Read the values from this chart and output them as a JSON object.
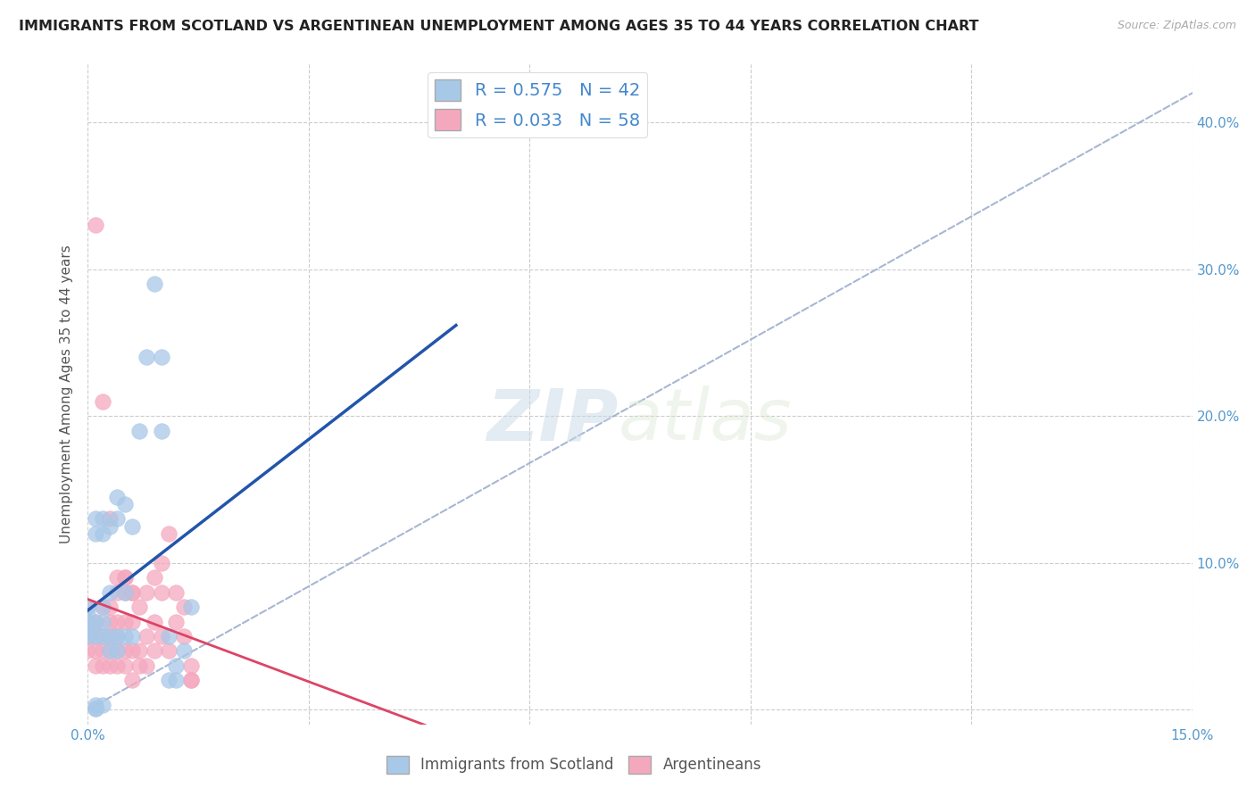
{
  "title": "IMMIGRANTS FROM SCOTLAND VS ARGENTINEAN UNEMPLOYMENT AMONG AGES 35 TO 44 YEARS CORRELATION CHART",
  "source": "Source: ZipAtlas.com",
  "ylabel": "Unemployment Among Ages 35 to 44 years",
  "xlim": [
    0.0,
    0.15
  ],
  "ylim": [
    -0.01,
    0.44
  ],
  "xticks": [
    0.0,
    0.03,
    0.06,
    0.09,
    0.12,
    0.15
  ],
  "yticks": [
    0.0,
    0.1,
    0.2,
    0.3,
    0.4
  ],
  "yticklabels_right": [
    "",
    "10.0%",
    "20.0%",
    "30.0%",
    "40.0%"
  ],
  "scotland_R": 0.575,
  "scotland_N": 42,
  "argentina_R": 0.033,
  "argentina_N": 58,
  "scotland_color": "#a8c8e8",
  "argentina_color": "#f4a8be",
  "scotland_line_color": "#2255aa",
  "argentina_line_color": "#dd4466",
  "ref_line_color": "#99aacc",
  "scotland_x": [
    0.0,
    0.0,
    0.0,
    0.0,
    0.0,
    0.001,
    0.001,
    0.001,
    0.001,
    0.002,
    0.002,
    0.002,
    0.002,
    0.002,
    0.003,
    0.003,
    0.003,
    0.003,
    0.004,
    0.004,
    0.004,
    0.004,
    0.005,
    0.005,
    0.005,
    0.006,
    0.006,
    0.007,
    0.008,
    0.009,
    0.01,
    0.01,
    0.011,
    0.011,
    0.012,
    0.012,
    0.013,
    0.014,
    0.001,
    0.002,
    0.001,
    0.001
  ],
  "scotland_y": [
    0.05,
    0.055,
    0.06,
    0.065,
    0.07,
    0.05,
    0.06,
    0.12,
    0.13,
    0.05,
    0.06,
    0.07,
    0.12,
    0.13,
    0.04,
    0.05,
    0.08,
    0.125,
    0.04,
    0.05,
    0.13,
    0.145,
    0.05,
    0.08,
    0.14,
    0.05,
    0.125,
    0.19,
    0.24,
    0.29,
    0.19,
    0.24,
    0.02,
    0.05,
    0.02,
    0.03,
    0.04,
    0.07,
    0.003,
    0.003,
    0.001,
    0.001
  ],
  "argentina_x": [
    0.0,
    0.0,
    0.0,
    0.0,
    0.001,
    0.001,
    0.001,
    0.001,
    0.002,
    0.002,
    0.002,
    0.002,
    0.003,
    0.003,
    0.003,
    0.003,
    0.003,
    0.004,
    0.004,
    0.004,
    0.004,
    0.004,
    0.005,
    0.005,
    0.005,
    0.005,
    0.005,
    0.006,
    0.006,
    0.006,
    0.006,
    0.007,
    0.007,
    0.007,
    0.008,
    0.008,
    0.008,
    0.009,
    0.009,
    0.009,
    0.01,
    0.01,
    0.01,
    0.011,
    0.011,
    0.012,
    0.012,
    0.013,
    0.013,
    0.014,
    0.014,
    0.001,
    0.002,
    0.003,
    0.004,
    0.005,
    0.006,
    0.014
  ],
  "argentina_y": [
    0.04,
    0.05,
    0.06,
    0.07,
    0.03,
    0.04,
    0.05,
    0.06,
    0.03,
    0.04,
    0.05,
    0.07,
    0.03,
    0.04,
    0.05,
    0.06,
    0.07,
    0.03,
    0.04,
    0.05,
    0.06,
    0.08,
    0.03,
    0.04,
    0.06,
    0.08,
    0.09,
    0.02,
    0.04,
    0.06,
    0.08,
    0.03,
    0.04,
    0.07,
    0.03,
    0.05,
    0.08,
    0.04,
    0.06,
    0.09,
    0.05,
    0.08,
    0.1,
    0.04,
    0.12,
    0.06,
    0.08,
    0.05,
    0.07,
    0.02,
    0.03,
    0.33,
    0.21,
    0.13,
    0.09,
    0.09,
    0.08,
    0.02
  ],
  "watermark_zip": "ZIP",
  "watermark_atlas": "atlas",
  "background_color": "#ffffff",
  "grid_color": "#cccccc",
  "title_fontsize": 11.5,
  "axis_fontsize": 11,
  "ylabel_fontsize": 11
}
